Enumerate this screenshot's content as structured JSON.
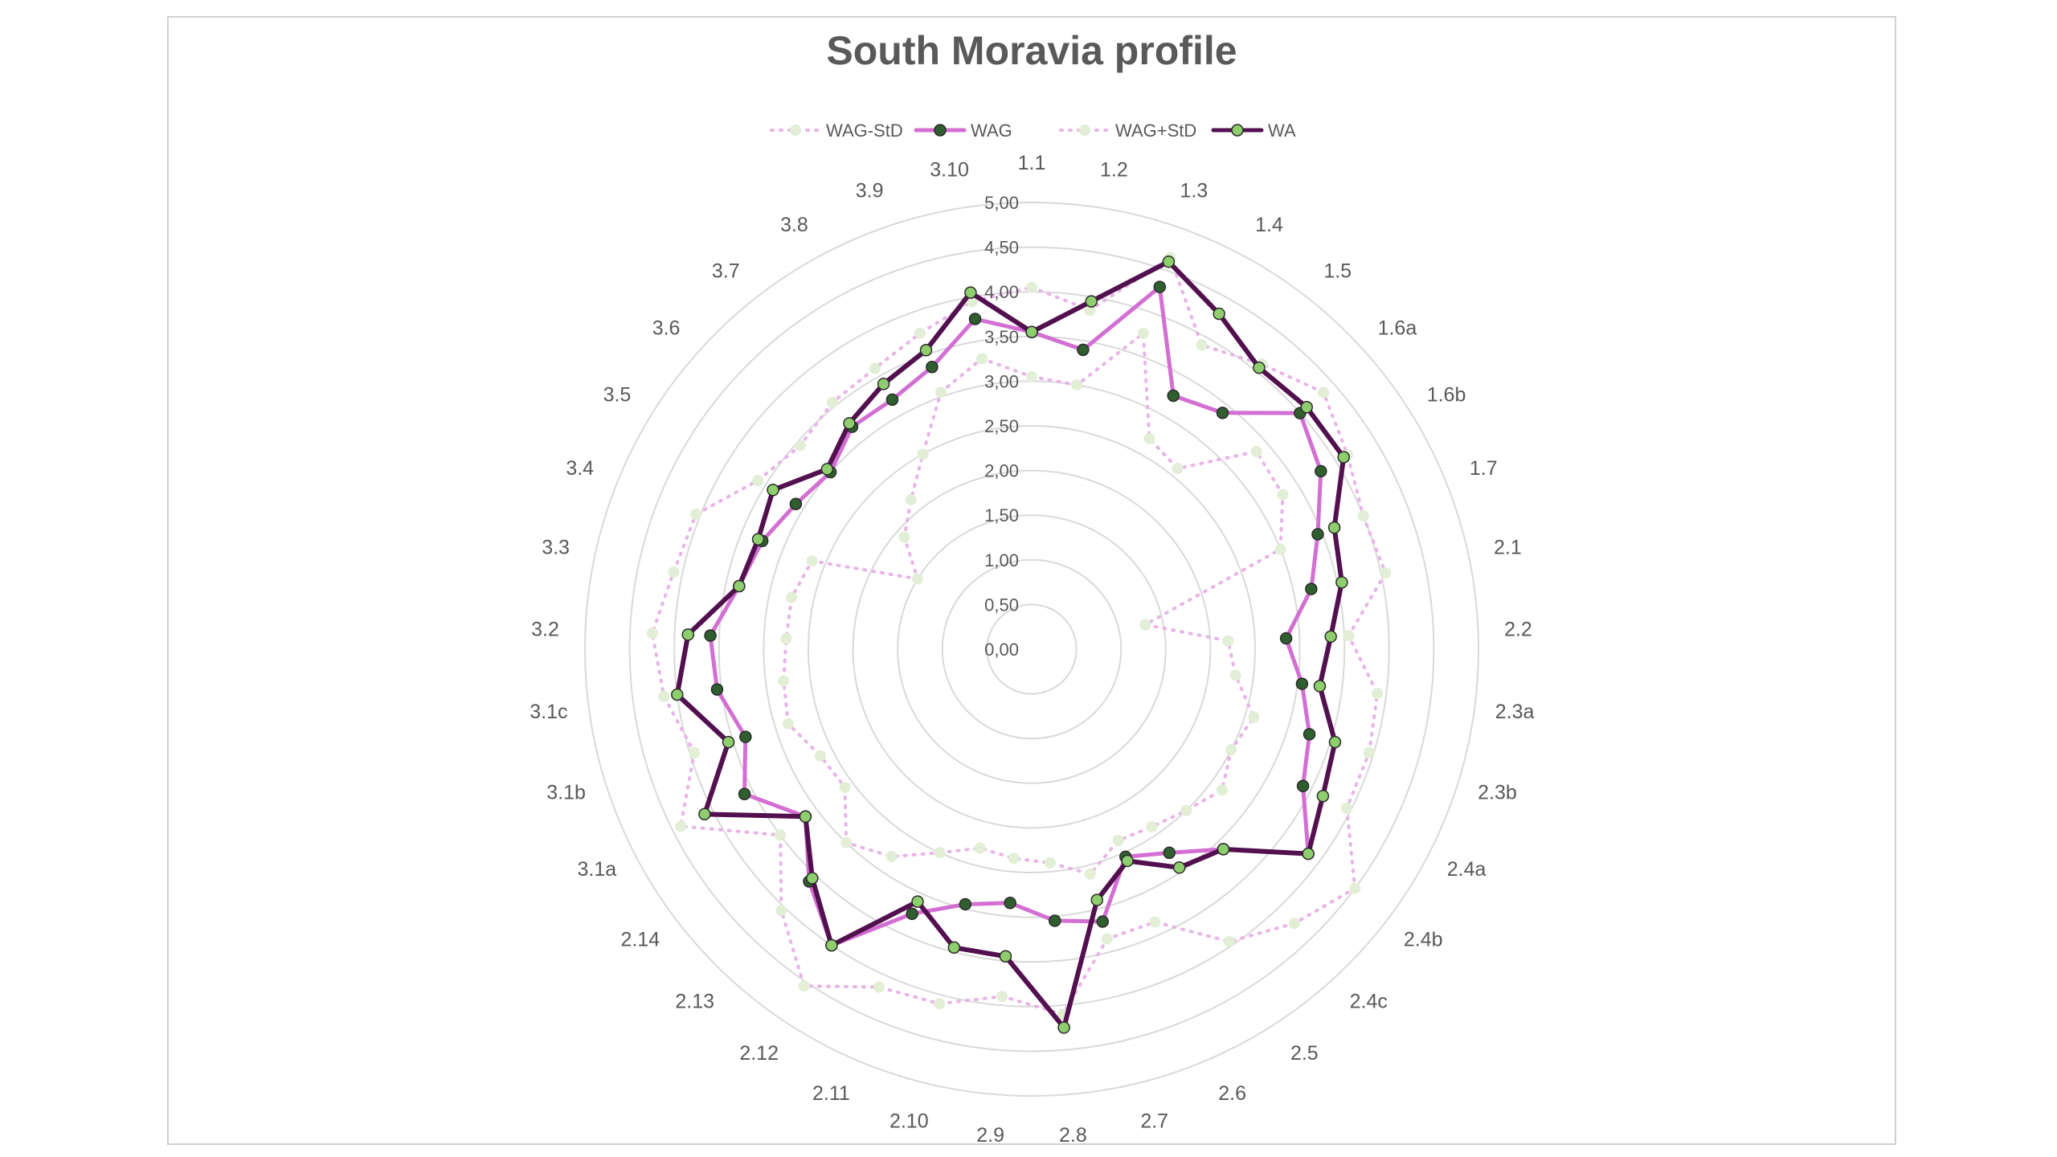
{
  "chart_data": {
    "type": "radar",
    "title": "South Moravia profile",
    "legend_position": "top",
    "grid": true,
    "r_range": [
      0,
      5
    ],
    "r_step": 0.5,
    "tick_labels": [
      "0,00",
      "0,50",
      "1,00",
      "1,50",
      "2,00",
      "2,50",
      "3,00",
      "3,50",
      "4,00",
      "4,50",
      "5,00"
    ],
    "categories": [
      "1.1",
      "1.2",
      "1.3",
      "1.4",
      "1.5",
      "1.6a",
      "1.6b",
      "1.7",
      "2.1",
      "2.2",
      "2.3a",
      "2.3b",
      "2.4a",
      "2.4b",
      "2.4c",
      "2.5",
      "2.6",
      "2.7",
      "2.8",
      "2.9",
      "2.10",
      "2.11",
      "2.12",
      "2.13",
      "2.14",
      "3.1a",
      "3.1b",
      "3.1c",
      "3.2",
      "3.3",
      "3.4",
      "3.5",
      "3.6",
      "3.7",
      "3.8",
      "3.9",
      "3.10"
    ],
    "series": [
      {
        "name": "WAG-StD",
        "color": "#e8b4e8",
        "marker_fill": "#e2eed6",
        "style": "dotted",
        "values": [
          3.05,
          3.0,
          3.75,
          2.7,
          2.6,
          3.35,
          3.3,
          3.0,
          1.3,
          2.2,
          2.3,
          2.6,
          2.5,
          2.65,
          2.5,
          2.4,
          2.35,
          2.6,
          2.4,
          2.35,
          2.3,
          2.5,
          2.8,
          3.0,
          2.6,
          2.65,
          2.85,
          2.8,
          2.75,
          2.75,
          2.65,
          1.5,
          1.9,
          2.15,
          2.5,
          3.05,
          3.3
        ]
      },
      {
        "name": "WAG",
        "color": "#d36fd3",
        "marker_fill": "#2f5f2f",
        "style": "solid",
        "values": [
          3.55,
          3.4,
          4.3,
          3.25,
          3.4,
          4.0,
          3.8,
          3.45,
          3.2,
          2.85,
          3.05,
          3.25,
          3.4,
          3.85,
          3.1,
          2.75,
          2.55,
          3.15,
          3.05,
          2.85,
          2.95,
          3.25,
          4.0,
          3.6,
          3.15,
          3.6,
          3.35,
          3.55,
          3.6,
          3.35,
          3.25,
          3.1,
          3.0,
          3.2,
          3.2,
          3.35,
          3.75
        ]
      },
      {
        "name": "WAG+StD",
        "color": "#e8b4e8",
        "marker_fill": "#e2eed6",
        "style": "dotted",
        "values": [
          4.05,
          3.85,
          4.65,
          3.9,
          4.1,
          4.35,
          4.15,
          4.0,
          4.05,
          3.55,
          3.9,
          3.95,
          3.95,
          4.5,
          4.25,
          3.95,
          3.35,
          3.35,
          4.1,
          3.9,
          4.1,
          4.15,
          4.55,
          4.05,
          3.5,
          4.4,
          3.95,
          4.15,
          4.25,
          4.1,
          4.05,
          3.6,
          3.45,
          3.55,
          3.6,
          3.75,
          3.95
        ]
      },
      {
        "name": "WA",
        "color": "#52104f",
        "marker_fill": "#8fce6e",
        "style": "solid",
        "values": [
          3.55,
          3.95,
          4.6,
          4.3,
          4.05,
          4.1,
          4.1,
          3.65,
          3.55,
          3.35,
          3.25,
          3.55,
          3.65,
          3.85,
          3.1,
          2.95,
          2.6,
          2.9,
          4.25,
          3.45,
          3.45,
          3.1,
          4.0,
          3.55,
          3.15,
          4.1,
          3.55,
          4.0,
          3.85,
          3.35,
          3.3,
          3.4,
          3.05,
          3.25,
          3.4,
          3.55,
          4.05
        ]
      }
    ]
  }
}
